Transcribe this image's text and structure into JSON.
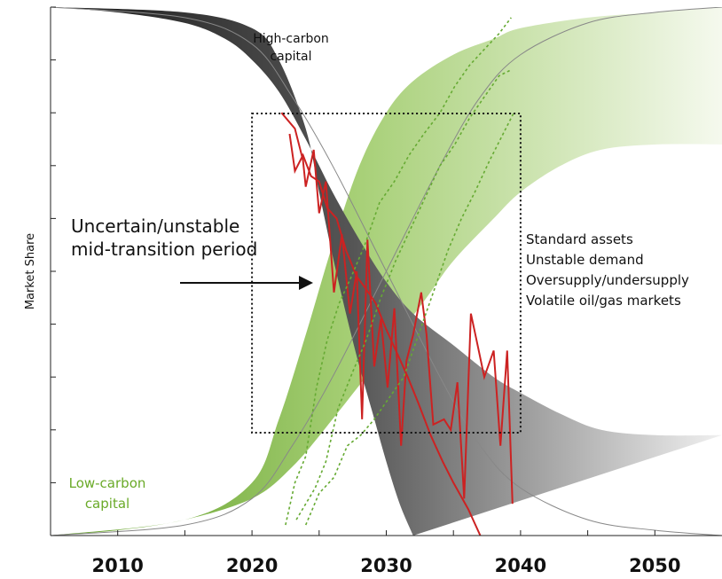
{
  "chart_data": {
    "type": "area",
    "title": "",
    "xlabel": "",
    "ylabel": "Market Share",
    "xlim": [
      2005,
      2055
    ],
    "ylim": [
      0,
      1
    ],
    "x_ticks": [
      "2010",
      "2020",
      "2030",
      "2040",
      "2050"
    ],
    "series": [
      {
        "name": "High-carbon capital",
        "color": "#3a3a3a",
        "trend_color": "#888888",
        "upper": [
          [
            2005,
            1.0
          ],
          [
            2010,
            0.99
          ],
          [
            2015,
            0.97
          ],
          [
            2018,
            0.94
          ],
          [
            2020,
            0.9
          ],
          [
            2022,
            0.84
          ],
          [
            2024,
            0.75
          ],
          [
            2026,
            0.65
          ],
          [
            2028,
            0.56
          ],
          [
            2030,
            0.48
          ],
          [
            2032,
            0.42
          ],
          [
            2035,
            0.36
          ],
          [
            2038,
            0.3
          ],
          [
            2040,
            0.27
          ],
          [
            2043,
            0.23
          ],
          [
            2046,
            0.2
          ],
          [
            2050,
            0.19
          ],
          [
            2055,
            0.19
          ]
        ],
        "lower": [
          [
            2005,
            1.0
          ],
          [
            2015,
            0.99
          ],
          [
            2020,
            0.96
          ],
          [
            2022,
            0.9
          ],
          [
            2024,
            0.77
          ],
          [
            2025,
            0.65
          ],
          [
            2026,
            0.53
          ],
          [
            2027,
            0.42
          ],
          [
            2028,
            0.32
          ],
          [
            2029,
            0.23
          ],
          [
            2030,
            0.14
          ],
          [
            2031,
            0.06
          ],
          [
            2032,
            0.0
          ]
        ],
        "trend": [
          [
            2005,
            1.0
          ],
          [
            2015,
            0.98
          ],
          [
            2020,
            0.93
          ],
          [
            2023,
            0.83
          ],
          [
            2026,
            0.7
          ],
          [
            2030,
            0.5
          ],
          [
            2034,
            0.3
          ],
          [
            2037,
            0.17
          ],
          [
            2040,
            0.09
          ],
          [
            2045,
            0.03
          ],
          [
            2050,
            0.01
          ],
          [
            2055,
            0.0
          ]
        ]
      },
      {
        "name": "Low-carbon capital",
        "color": "#6aaa28",
        "trend_color": "#888888",
        "upper": [
          [
            2005,
            0.0
          ],
          [
            2015,
            0.03
          ],
          [
            2020,
            0.1
          ],
          [
            2022,
            0.22
          ],
          [
            2024,
            0.38
          ],
          [
            2026,
            0.55
          ],
          [
            2028,
            0.7
          ],
          [
            2030,
            0.8
          ],
          [
            2032,
            0.86
          ],
          [
            2035,
            0.91
          ],
          [
            2038,
            0.94
          ],
          [
            2040,
            0.96
          ],
          [
            2045,
            0.98
          ],
          [
            2050,
            0.99
          ],
          [
            2055,
            1.0
          ]
        ],
        "lower": [
          [
            2005,
            0.0
          ],
          [
            2010,
            0.01
          ],
          [
            2015,
            0.03
          ],
          [
            2020,
            0.07
          ],
          [
            2023,
            0.13
          ],
          [
            2026,
            0.22
          ],
          [
            2030,
            0.35
          ],
          [
            2033,
            0.45
          ],
          [
            2035,
            0.52
          ],
          [
            2038,
            0.6
          ],
          [
            2040,
            0.65
          ],
          [
            2043,
            0.7
          ],
          [
            2046,
            0.73
          ],
          [
            2050,
            0.74
          ],
          [
            2055,
            0.74
          ]
        ],
        "trend": [
          [
            2005,
            0.0
          ],
          [
            2015,
            0.02
          ],
          [
            2020,
            0.07
          ],
          [
            2023,
            0.17
          ],
          [
            2026,
            0.3
          ],
          [
            2030,
            0.5
          ],
          [
            2034,
            0.7
          ],
          [
            2037,
            0.83
          ],
          [
            2040,
            0.91
          ],
          [
            2045,
            0.97
          ],
          [
            2050,
            0.99
          ],
          [
            2055,
            1.0
          ]
        ]
      }
    ],
    "volatile_series": [
      {
        "name": "",
        "color": "#cc2222",
        "style": "solid",
        "points": [
          [
            2022.2,
            0.8
          ],
          [
            2023.2,
            0.77
          ],
          [
            2023.8,
            0.71
          ],
          [
            2024,
            0.66
          ],
          [
            2024.6,
            0.73
          ],
          [
            2025,
            0.61
          ],
          [
            2025.5,
            0.67
          ],
          [
            2026.1,
            0.46
          ],
          [
            2026.7,
            0.57
          ],
          [
            2027.3,
            0.42
          ],
          [
            2027.8,
            0.5
          ],
          [
            2028.2,
            0.22
          ],
          [
            2028.6,
            0.56
          ],
          [
            2029.1,
            0.32
          ],
          [
            2029.6,
            0.41
          ],
          [
            2030.1,
            0.28
          ],
          [
            2030.6,
            0.43
          ],
          [
            2031.1,
            0.17
          ],
          [
            2031.5,
            0.33
          ],
          [
            2032,
            0.38
          ],
          [
            2032.6,
            0.46
          ],
          [
            2033,
            0.38
          ],
          [
            2033.5,
            0.21
          ],
          [
            2034.3,
            0.22
          ],
          [
            2034.8,
            0.2
          ],
          [
            2035.3,
            0.29
          ],
          [
            2035.8,
            0.07
          ],
          [
            2036.3,
            0.42
          ],
          [
            2036.8,
            0.36
          ],
          [
            2037.3,
            0.3
          ],
          [
            2038,
            0.35
          ],
          [
            2038.5,
            0.17
          ],
          [
            2039,
            0.35
          ],
          [
            2039.4,
            0.06
          ]
        ]
      },
      {
        "name": "",
        "color": "#cc2222",
        "style": "solid",
        "points": [
          [
            2022.8,
            0.76
          ],
          [
            2023.2,
            0.69
          ],
          [
            2023.8,
            0.72
          ],
          [
            2024.4,
            0.68
          ],
          [
            2025,
            0.67
          ],
          [
            2025.6,
            0.62
          ],
          [
            2026.3,
            0.6
          ],
          [
            2027,
            0.54
          ],
          [
            2027.8,
            0.49
          ],
          [
            2028.4,
            0.47
          ],
          [
            2029.2,
            0.44
          ],
          [
            2030,
            0.39
          ],
          [
            2030.9,
            0.34
          ],
          [
            2031.6,
            0.3
          ],
          [
            2032.4,
            0.25
          ],
          [
            2033.3,
            0.19
          ],
          [
            2034.2,
            0.14
          ],
          [
            2035,
            0.1
          ],
          [
            2036.1,
            0.05
          ],
          [
            2037,
            0.0
          ]
        ]
      },
      {
        "name": "",
        "color": "#66aa33",
        "style": "dotted",
        "points": [
          [
            2022.5,
            0.02
          ],
          [
            2023.2,
            0.1
          ],
          [
            2024,
            0.15
          ],
          [
            2024.8,
            0.28
          ],
          [
            2025.6,
            0.37
          ],
          [
            2026.5,
            0.44
          ],
          [
            2027.4,
            0.49
          ],
          [
            2028.4,
            0.55
          ],
          [
            2029.5,
            0.63
          ],
          [
            2030.6,
            0.67
          ],
          [
            2031.7,
            0.72
          ],
          [
            2032.8,
            0.76
          ],
          [
            2034,
            0.8
          ],
          [
            2035.1,
            0.85
          ],
          [
            2036.2,
            0.89
          ],
          [
            2037.3,
            0.92
          ],
          [
            2038.4,
            0.95
          ],
          [
            2039.3,
            0.98
          ]
        ]
      },
      {
        "name": "",
        "color": "#66aa33",
        "style": "dotted",
        "points": [
          [
            2023.3,
            0.03
          ],
          [
            2024,
            0.06
          ],
          [
            2024.7,
            0.09
          ],
          [
            2025.5,
            0.14
          ],
          [
            2026.4,
            0.24
          ],
          [
            2027.5,
            0.31
          ],
          [
            2028.5,
            0.37
          ],
          [
            2029.6,
            0.45
          ],
          [
            2030.7,
            0.52
          ],
          [
            2031.8,
            0.58
          ],
          [
            2032.9,
            0.64
          ],
          [
            2034,
            0.7
          ],
          [
            2035.1,
            0.74
          ],
          [
            2036.2,
            0.79
          ],
          [
            2037.3,
            0.83
          ],
          [
            2038.4,
            0.87
          ],
          [
            2039.2,
            0.88
          ]
        ]
      },
      {
        "name": "",
        "color": "#66aa33",
        "style": "dotted",
        "points": [
          [
            2024,
            0.02
          ],
          [
            2025,
            0.08
          ],
          [
            2026.1,
            0.11
          ],
          [
            2027.1,
            0.17
          ],
          [
            2028.1,
            0.19
          ],
          [
            2029.1,
            0.22
          ],
          [
            2030.2,
            0.26
          ],
          [
            2031.3,
            0.3
          ],
          [
            2032.4,
            0.38
          ],
          [
            2033.5,
            0.46
          ],
          [
            2034.6,
            0.54
          ],
          [
            2035.6,
            0.6
          ],
          [
            2036.6,
            0.65
          ],
          [
            2037.7,
            0.71
          ],
          [
            2038.7,
            0.76
          ],
          [
            2039.5,
            0.8
          ]
        ]
      }
    ],
    "window": {
      "x": [
        2020,
        2040
      ],
      "y": [
        0,
        1
      ]
    },
    "annotations": {
      "high_carbon_label": "High-carbon\ncapital",
      "low_carbon_label": "Low-carbon\ncapital",
      "uncertain_label": "Uncertain/unstable\nmid-transition period",
      "risks": [
        "Standard assets",
        "Unstable demand",
        "Oversupply/undersupply",
        "Volatile oil/gas markets"
      ]
    },
    "grid": false,
    "legend": "none"
  }
}
